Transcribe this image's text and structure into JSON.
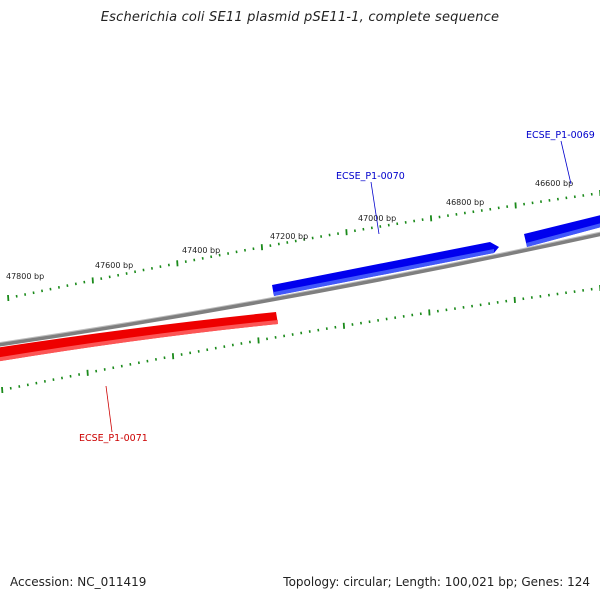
{
  "title": "Escherichia coli SE11 plasmid pSE11-1, complete sequence",
  "footer": {
    "accession": "Accession: NC_011419",
    "summary": "Topology: circular; Length: 100,021 bp; Genes: 124"
  },
  "colors": {
    "forward": "#0000ee",
    "reverse": "#ee0000",
    "backbone": "#7f7f7f",
    "ticks": "#1a8a1a"
  },
  "position_labels": [
    "47800 bp",
    "47600 bp",
    "47400 bp",
    "47200 bp",
    "47000 bp",
    "46800 bp",
    "46600 bp"
  ],
  "genes": [
    {
      "id": "ECSE_P1-0069",
      "strand": "forward"
    },
    {
      "id": "ECSE_P1-0070",
      "strand": "forward"
    },
    {
      "id": "ECSE_P1-0071",
      "strand": "reverse"
    }
  ]
}
